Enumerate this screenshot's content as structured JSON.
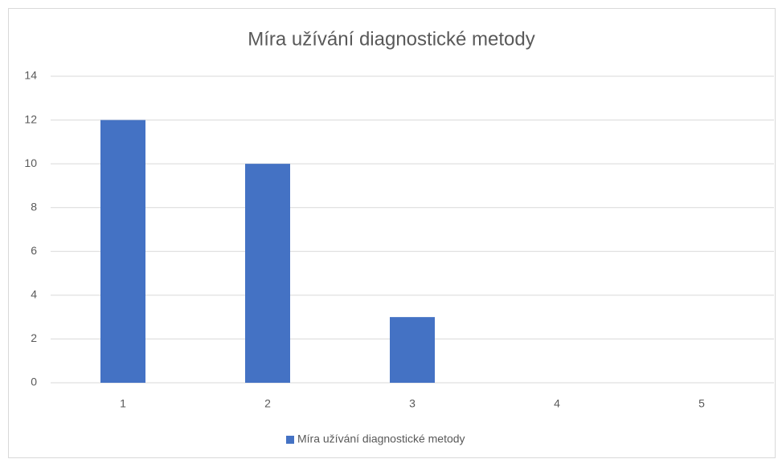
{
  "chart_data": {
    "type": "bar",
    "title": "Míra užívání diagnostické metody",
    "categories": [
      "1",
      "2",
      "3",
      "4",
      "5"
    ],
    "series": [
      {
        "name": "Míra užívání diagnostické metody",
        "color": "#4472c4",
        "values": [
          12,
          10,
          3,
          0,
          0
        ]
      }
    ],
    "ylim": [
      0,
      14
    ],
    "yticks": [
      0,
      2,
      4,
      6,
      8,
      10,
      12,
      14
    ],
    "grid": true,
    "legend": "bottom"
  }
}
